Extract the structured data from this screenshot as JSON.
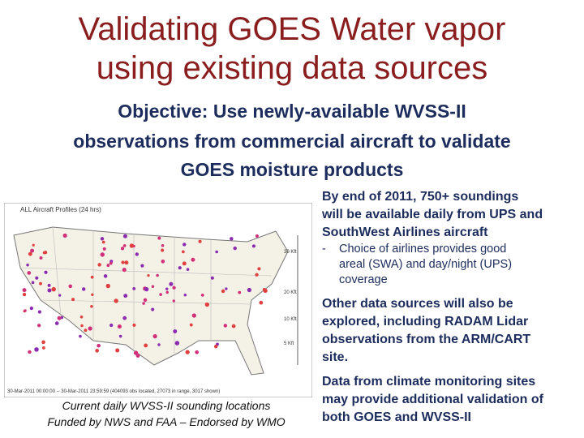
{
  "title": [
    "Validating GOES Water vapor",
    "using existing data sources"
  ],
  "objective": [
    "Objective:  Use newly-available WVSS-II",
    "observations from commercial aircraft to validate",
    "GOES moisture products"
  ],
  "map": {
    "title": "ALL Aircraft Profiles (24 hrs)",
    "time_range": "30-Mar-2011 00:00:00 -- 30-Mar-2011 23:59:59 (404093 obs located, 27073 in range, 3017 shown)",
    "altitude_labels": [
      "30 Kft",
      "20 Kft",
      "10 Kft",
      "5 Kft"
    ]
  },
  "caption": [
    "Current daily WVSS-II sounding locations",
    "Funded by NWS and FAA – Endorsed by WMO"
  ],
  "bullets": [
    {
      "lines": [
        "By end of 2011, 750+ soundings",
        "will be available daily from UPS and",
        "SouthWest Airlines aircraft"
      ],
      "sub": {
        "marker": "-",
        "lines": [
          "Choice of airlines provides good",
          "areal (SWA) and day/night (UPS)",
          "coverage"
        ]
      }
    },
    {
      "lines": [
        "Other data sources will also be",
        "explored, including RADAM Lidar",
        "observations from the ARM/CART",
        "site."
      ]
    },
    {
      "lines": [
        "Data from climate monitoring sites",
        "may provide additional validation of",
        "both GOES and WVSS-II"
      ]
    }
  ]
}
